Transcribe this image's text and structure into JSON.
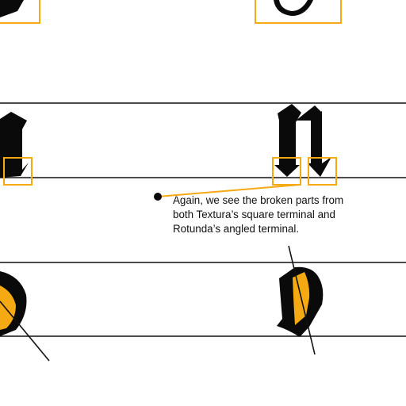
{
  "colors": {
    "accent": "#F5A912",
    "ink": "#0a0a0a",
    "rule": "#111111",
    "background": "#ffffff"
  },
  "annotation": {
    "lines": [
      "Again, we see the broken parts from",
      "both Textura’s square terminal and",
      "Rotunda’s angled terminal."
    ]
  }
}
